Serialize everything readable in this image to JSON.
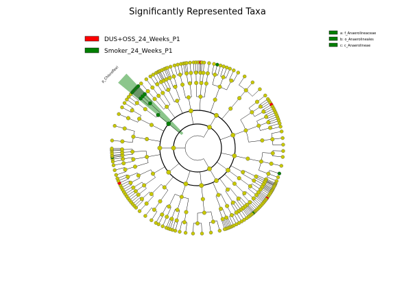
{
  "title": "Significantly Represented Taxa",
  "legend": [
    "DUS+OSS_24_Weeks_P1",
    "Smoker_24_Weeks_P1"
  ],
  "clade_keys": [
    "a: f_Anaerolineaceae",
    "b: o_Anaerolineales",
    "c: c_Anaerolineae"
  ],
  "highlight_label": "p_Chloroflexi"
}
